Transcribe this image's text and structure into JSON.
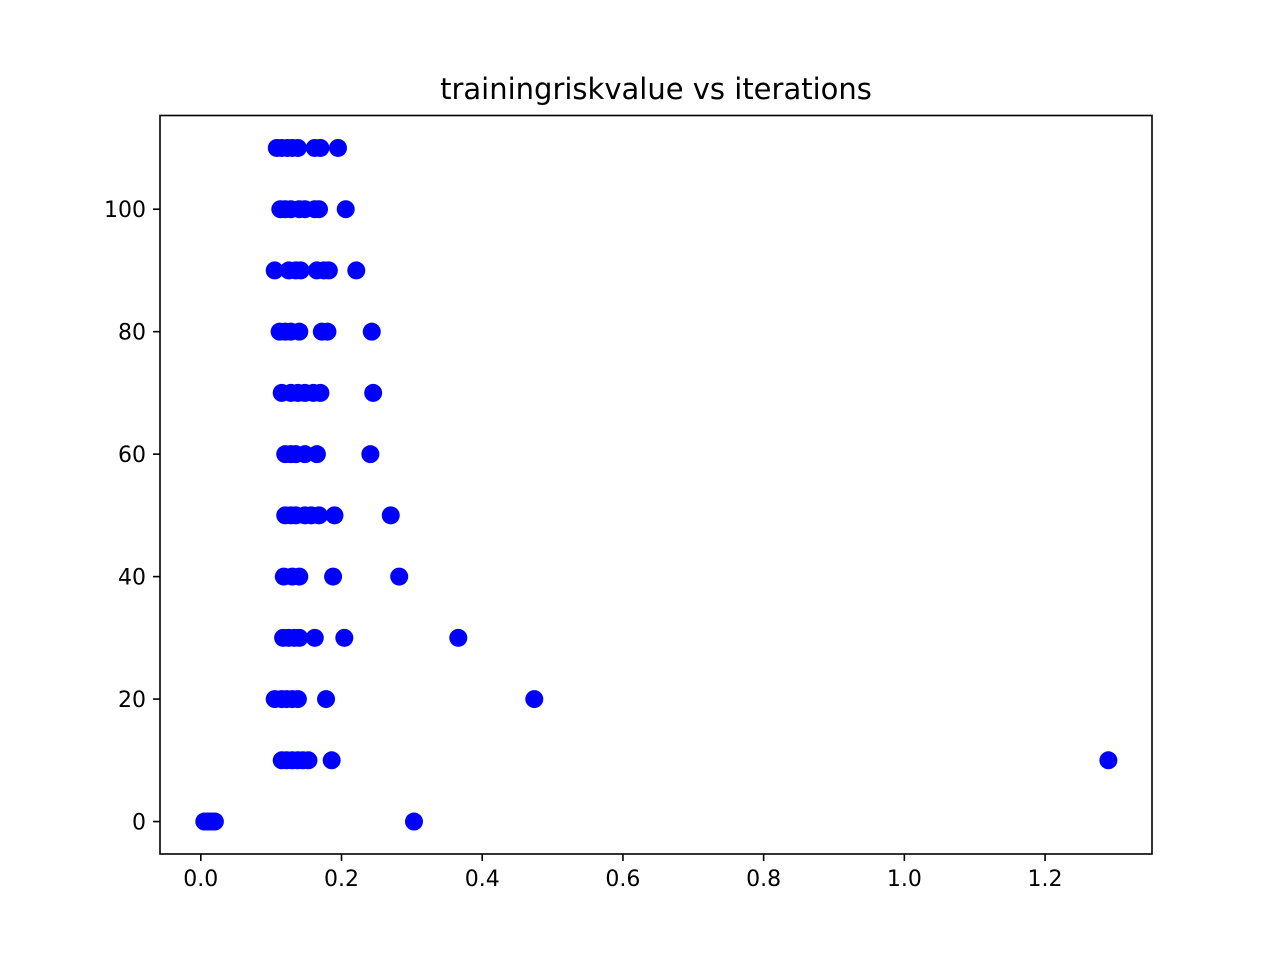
{
  "chart_data": {
    "type": "scatter",
    "title": "trainingriskvalue vs iterations",
    "xlabel": "",
    "ylabel": "",
    "xlim": [
      -0.058,
      1.352
    ],
    "ylim": [
      -5.3,
      115.3
    ],
    "xticks": [
      0.0,
      0.2,
      0.4,
      0.6,
      0.8,
      1.0,
      1.2
    ],
    "xtick_labels": [
      "0.0",
      "0.2",
      "0.4",
      "0.6",
      "0.8",
      "1.0",
      "1.2"
    ],
    "yticks": [
      0,
      20,
      40,
      60,
      80,
      100
    ],
    "ytick_labels": [
      "0",
      "20",
      "40",
      "60",
      "80",
      "100"
    ],
    "grid": false,
    "legend": "none",
    "marker_color": "#0000ff",
    "series": [
      {
        "points": [
          [
            0.005,
            0
          ],
          [
            0.01,
            0
          ],
          [
            0.015,
            0
          ],
          [
            0.02,
            0
          ],
          [
            0.303,
            0
          ],
          [
            0.115,
            10
          ],
          [
            0.122,
            10
          ],
          [
            0.13,
            10
          ],
          [
            0.138,
            10
          ],
          [
            0.145,
            10
          ],
          [
            0.153,
            10
          ],
          [
            0.186,
            10
          ],
          [
            1.29,
            10
          ],
          [
            0.105,
            20
          ],
          [
            0.115,
            20
          ],
          [
            0.122,
            20
          ],
          [
            0.13,
            20
          ],
          [
            0.138,
            20
          ],
          [
            0.178,
            20
          ],
          [
            0.474,
            20
          ],
          [
            0.117,
            30
          ],
          [
            0.125,
            30
          ],
          [
            0.133,
            30
          ],
          [
            0.14,
            30
          ],
          [
            0.162,
            30
          ],
          [
            0.204,
            30
          ],
          [
            0.366,
            30
          ],
          [
            0.118,
            40
          ],
          [
            0.13,
            40
          ],
          [
            0.14,
            40
          ],
          [
            0.188,
            40
          ],
          [
            0.282,
            40
          ],
          [
            0.12,
            50
          ],
          [
            0.128,
            50
          ],
          [
            0.135,
            50
          ],
          [
            0.148,
            50
          ],
          [
            0.157,
            50
          ],
          [
            0.168,
            50
          ],
          [
            0.19,
            50
          ],
          [
            0.27,
            50
          ],
          [
            0.12,
            60
          ],
          [
            0.128,
            60
          ],
          [
            0.135,
            60
          ],
          [
            0.148,
            60
          ],
          [
            0.165,
            60
          ],
          [
            0.241,
            60
          ],
          [
            0.115,
            70
          ],
          [
            0.128,
            70
          ],
          [
            0.138,
            70
          ],
          [
            0.148,
            70
          ],
          [
            0.16,
            70
          ],
          [
            0.17,
            70
          ],
          [
            0.245,
            70
          ],
          [
            0.112,
            80
          ],
          [
            0.12,
            80
          ],
          [
            0.128,
            80
          ],
          [
            0.14,
            80
          ],
          [
            0.172,
            80
          ],
          [
            0.18,
            80
          ],
          [
            0.243,
            80
          ],
          [
            0.105,
            90
          ],
          [
            0.125,
            90
          ],
          [
            0.135,
            90
          ],
          [
            0.142,
            90
          ],
          [
            0.165,
            90
          ],
          [
            0.175,
            90
          ],
          [
            0.182,
            90
          ],
          [
            0.221,
            90
          ],
          [
            0.113,
            100
          ],
          [
            0.12,
            100
          ],
          [
            0.128,
            100
          ],
          [
            0.14,
            100
          ],
          [
            0.148,
            100
          ],
          [
            0.162,
            100
          ],
          [
            0.168,
            100
          ],
          [
            0.206,
            100
          ],
          [
            0.108,
            110
          ],
          [
            0.115,
            110
          ],
          [
            0.123,
            110
          ],
          [
            0.13,
            110
          ],
          [
            0.138,
            110
          ],
          [
            0.162,
            110
          ],
          [
            0.17,
            110
          ],
          [
            0.195,
            110
          ]
        ]
      }
    ]
  }
}
